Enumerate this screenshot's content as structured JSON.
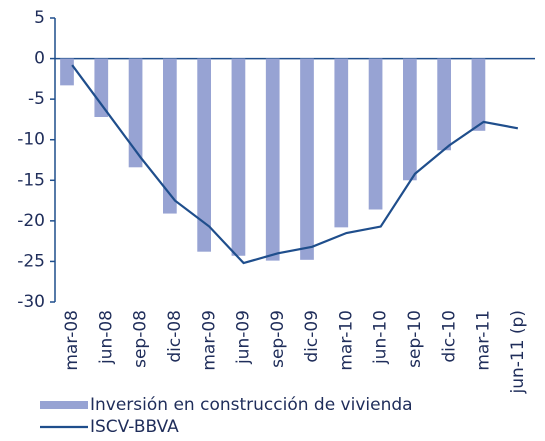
{
  "chart_data": {
    "type": "bar-line",
    "categories": [
      "mar-08",
      "jun-08",
      "sep-08",
      "dic-08",
      "mar-09",
      "jun-09",
      "sep-09",
      "dic-09",
      "mar-10",
      "jun-10",
      "sep-10",
      "dic-10",
      "mar-11",
      "jun-11 (p)"
    ],
    "series": [
      {
        "name": "Inversión en construcción de vivienda",
        "type": "bar",
        "color": "#97a3d3",
        "values": [
          -3.3,
          -7.2,
          -13.4,
          -19.1,
          -23.8,
          -24.3,
          -24.9,
          -24.8,
          -20.8,
          -18.6,
          -15,
          -11.3,
          -8.9,
          null
        ]
      },
      {
        "name": "ISCV-BBVA",
        "type": "line",
        "color": "#1f4e8c",
        "values": [
          -0.8,
          -6.5,
          -12.2,
          -17.5,
          -20.7,
          -25.2,
          -24,
          -23.2,
          -21.5,
          -20.7,
          -14.2,
          -10.7,
          -7.8,
          -8.6
        ]
      }
    ],
    "ylim": [
      -30,
      5
    ],
    "yticks": [
      5,
      0,
      -5,
      -10,
      -15,
      -20,
      -25,
      -30
    ]
  }
}
